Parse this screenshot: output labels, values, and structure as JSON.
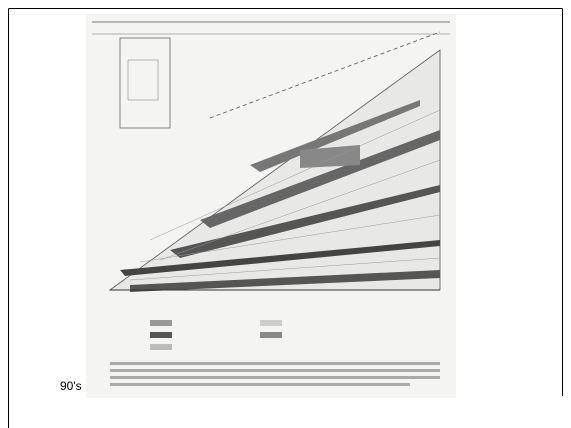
{
  "caption": "90's"
}
